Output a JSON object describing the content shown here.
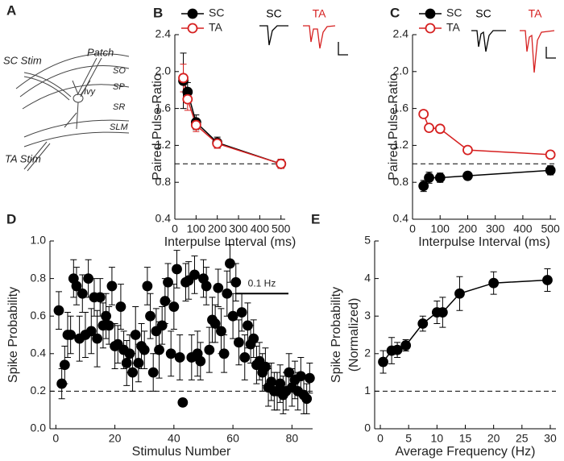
{
  "diagram": {
    "letter": "A",
    "labels": [
      "SC Stim",
      "Patch",
      "SO",
      "SP",
      "Ivy",
      "SR",
      "SLM",
      "TA Stim"
    ]
  },
  "chart_data": [
    {
      "type": "line",
      "label": "B",
      "ylabel": [
        "Paired Pulse Ratio"
      ],
      "xlabel": "Interpulse Interval (ms)",
      "x": [
        40,
        60,
        100,
        200,
        500
      ],
      "series": [
        {
          "name": "SC",
          "color": "#000000",
          "marker": "filled",
          "values": [
            1.9,
            1.78,
            1.45,
            1.23,
            1.0
          ],
          "errors": [
            0.3,
            0.1,
            0.08,
            0.06,
            0.05
          ]
        },
        {
          "name": "TA",
          "color": "#d62020",
          "marker": "open",
          "values": [
            1.93,
            1.7,
            1.42,
            1.22,
            1.0
          ],
          "errors": [
            0.15,
            0.12,
            0.07,
            0.05,
            0.05
          ]
        }
      ],
      "inset_labels": [
        "SC",
        "TA"
      ],
      "xlim": [
        0,
        520
      ],
      "xticks": [
        0,
        100,
        200,
        300,
        400,
        500
      ],
      "ylim": [
        0.4,
        2.4
      ],
      "yticks": [
        0.4,
        0.8,
        1.2,
        1.6,
        {
          "value": 2,
          "label": "2.0"
        },
        2.4
      ],
      "hline": 1
    },
    {
      "type": "line",
      "label": "C",
      "ylabel": [
        "Paired Pulse Ratio"
      ],
      "xlabel": "Interpulse Interval (ms)",
      "x": [
        40,
        60,
        100,
        200,
        500
      ],
      "series": [
        {
          "name": "SC",
          "color": "#000000",
          "marker": "filled",
          "values": [
            0.76,
            0.85,
            0.85,
            0.87,
            0.93
          ],
          "errors": [
            0.06,
            0.06,
            0.05,
            0.04,
            0.05
          ]
        },
        {
          "name": "TA",
          "color": "#d62020",
          "marker": "open",
          "values": [
            1.54,
            1.39,
            1.38,
            1.15,
            1.1
          ],
          "errors": [
            0.03,
            0.03,
            0.03,
            0.03,
            0.04
          ]
        }
      ],
      "inset_labels": [
        "SC",
        "TA"
      ],
      "xlim": [
        0,
        520
      ],
      "xticks": [
        0,
        100,
        200,
        300,
        400,
        500
      ],
      "ylim": [
        0.4,
        2.4
      ],
      "yticks": [
        0.4,
        0.8,
        1.2,
        1.6,
        {
          "value": 2,
          "label": "2.0"
        },
        2.4
      ],
      "hline": 1
    },
    {
      "type": "scatter",
      "label": "D",
      "ylabel": [
        "Spike Probability"
      ],
      "xlabel": "Stimulus Number",
      "color": "#000000",
      "marker": "filled",
      "x": [
        1,
        2,
        3,
        4,
        5,
        6,
        7,
        8,
        9,
        10,
        11,
        12,
        13,
        14,
        15,
        16,
        17,
        18,
        19,
        20,
        21,
        22,
        23,
        24,
        25,
        26,
        27,
        28,
        29,
        30,
        31,
        32,
        33,
        34,
        35,
        36,
        37,
        38,
        39,
        40,
        41,
        42,
        43,
        44,
        45,
        46,
        47,
        48,
        49,
        50,
        51,
        52,
        53,
        54,
        55,
        56,
        57,
        58,
        59,
        60,
        61,
        62,
        63,
        64,
        65,
        66,
        67,
        68,
        69,
        70,
        71,
        72,
        73,
        74,
        75,
        76,
        77,
        78,
        79,
        80,
        81,
        82,
        83,
        84,
        85,
        86
      ],
      "values": [
        0.63,
        0.24,
        0.34,
        0.5,
        0.5,
        0.8,
        0.76,
        0.48,
        0.72,
        0.5,
        0.8,
        0.52,
        0.7,
        0.48,
        0.7,
        0.55,
        0.6,
        0.55,
        0.76,
        0.44,
        0.45,
        0.65,
        0.42,
        0.35,
        0.4,
        0.3,
        0.5,
        0.35,
        0.44,
        0.42,
        0.76,
        0.6,
        0.3,
        0.52,
        0.42,
        0.55,
        0.68,
        0.78,
        0.4,
        0.65,
        0.85,
        0.38,
        0.14,
        0.78,
        0.79,
        0.38,
        0.82,
        0.4,
        0.36,
        0.8,
        0.76,
        0.42,
        0.58,
        0.56,
        0.75,
        0.52,
        0.4,
        0.72,
        0.88,
        0.6,
        0.78,
        0.46,
        0.62,
        0.38,
        0.55,
        0.45,
        0.48,
        0.34,
        0.36,
        0.3,
        0.33,
        0.22,
        0.25,
        0.2,
        0.2,
        0.24,
        0.18,
        0.2,
        0.3,
        0.22,
        0.26,
        0.2,
        0.28,
        0.18,
        0.16,
        0.27
      ],
      "errors": [
        0.1,
        0.08,
        0.1,
        0.12,
        0.1,
        0.1,
        0.1,
        0.12,
        0.1,
        0.12,
        0.1,
        0.12,
        0.1,
        0.15,
        0.1,
        0.12,
        0.12,
        0.1,
        0.1,
        0.12,
        0.1,
        0.12,
        0.1,
        0.12,
        0.1,
        0.1,
        0.15,
        0.1,
        0.12,
        0.1,
        0.1,
        0.12,
        0.1,
        0.12,
        0.15,
        0.1,
        0.12,
        0.1,
        0.12,
        0.12,
        0.1,
        0.12,
        0.02,
        0.1,
        0.1,
        0.12,
        0.1,
        0.12,
        0.1,
        0.1,
        0.1,
        0.12,
        0.12,
        0.1,
        0.1,
        0.12,
        0.1,
        0.12,
        0.1,
        0.12,
        0.1,
        0.12,
        0.1,
        0.12,
        0.12,
        0.1,
        0.1,
        0.1,
        0.1,
        0.1,
        0.1,
        0.1,
        0.1,
        0.1,
        0.1,
        0.1,
        0.1,
        0.1,
        0.1,
        0.1,
        0.1,
        0.1,
        0.1,
        0.1,
        0.08,
        0.08
      ],
      "annotation": "0.1 Hz",
      "xlim": [
        -2,
        87
      ],
      "xticks": [
        0,
        20,
        40,
        60,
        80
      ],
      "ylim": [
        0,
        1
      ],
      "yticks": [
        {
          "value": 0,
          "label": "0.0"
        },
        0.2,
        0.4,
        0.6,
        0.8,
        {
          "value": 1,
          "label": "1.0"
        }
      ],
      "hline": 0.2
    },
    {
      "type": "line",
      "label": "E",
      "ylabel": [
        "Spike Probability",
        "(Normalized)"
      ],
      "xlabel": "Average Frequency (Hz)",
      "color": "#000000",
      "marker": "filled",
      "x": [
        0.5,
        2,
        3,
        4.5,
        7.5,
        10,
        11,
        14,
        20,
        29.5
      ],
      "values": [
        1.78,
        2.08,
        2.1,
        2.22,
        2.8,
        3.1,
        3.1,
        3.6,
        3.88,
        3.96
      ],
      "errors": [
        0.3,
        0.35,
        0.2,
        0.15,
        0.2,
        0.3,
        0.4,
        0.45,
        0.3,
        0.3
      ],
      "xlim": [
        -1,
        31
      ],
      "xticks": [
        0,
        5,
        10,
        15,
        20,
        25,
        30
      ],
      "ylim": [
        0,
        5
      ],
      "yticks": [
        0,
        1,
        2,
        3,
        4,
        5
      ],
      "hline": 1
    }
  ]
}
